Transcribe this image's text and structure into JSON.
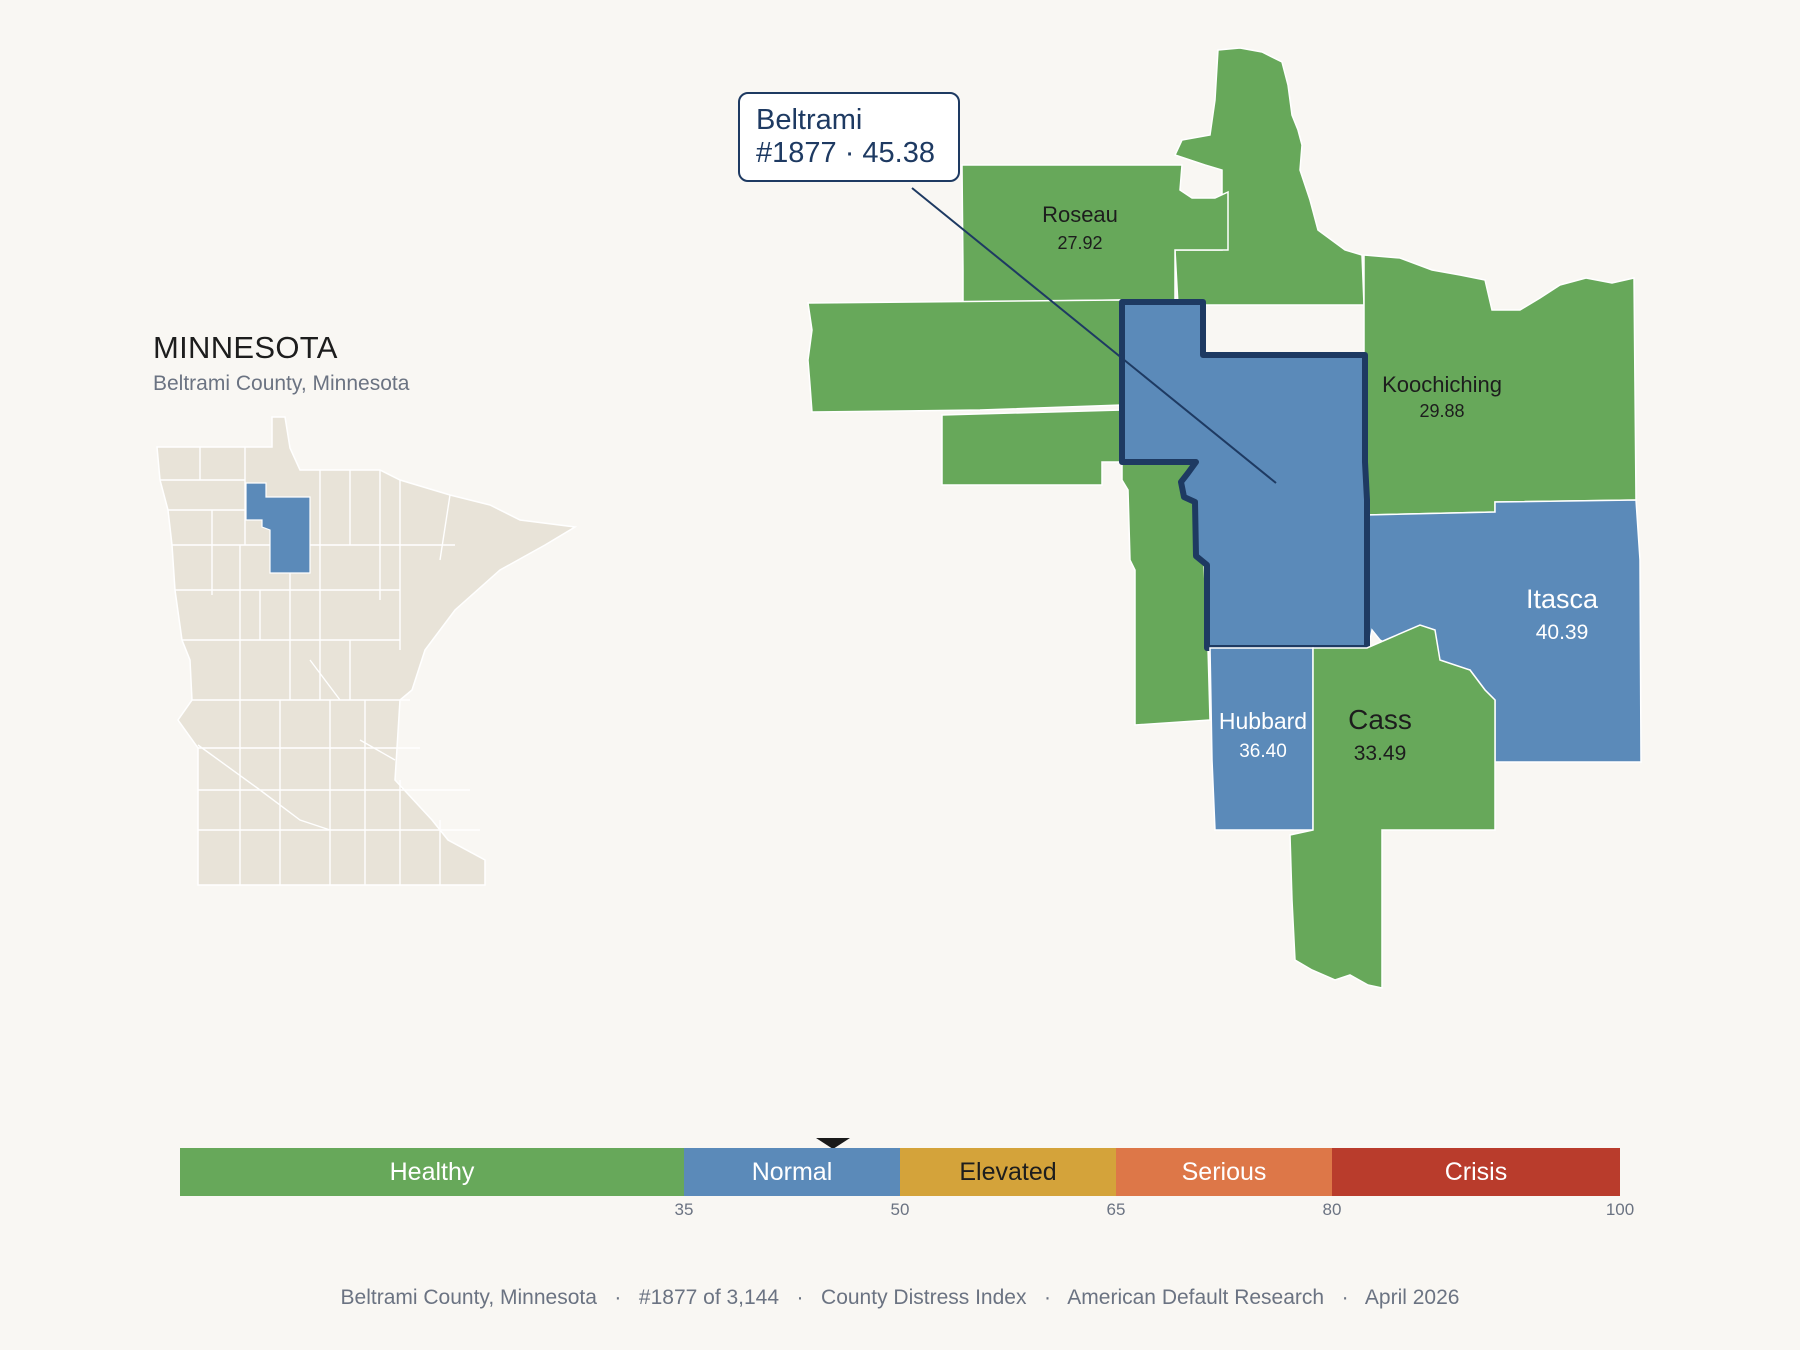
{
  "inset": {
    "title": "MINNESOTA",
    "subtitle": "Beltrami County, Minnesota"
  },
  "callout": {
    "line1": "Beltrami",
    "line2": "#1877 · 45.38"
  },
  "counties": {
    "roseau": {
      "name": "Roseau",
      "value": "27.92"
    },
    "koochiching": {
      "name": "Koochiching",
      "value": "29.88"
    },
    "itasca": {
      "name": "Itasca",
      "value": "40.39"
    },
    "hubbard": {
      "name": "Hubbard",
      "value": "36.40"
    },
    "cass": {
      "name": "Cass",
      "value": "33.49"
    },
    "beltrami": {
      "name": "Beltrami",
      "value": "45.38"
    }
  },
  "colors": {
    "healthy": "#67a85a",
    "normal": "#5b8ab9",
    "elevated": "#d4a33a",
    "serious": "#dd7748",
    "crisis": "#b93c2c",
    "highlight_outline": "#1e3a62",
    "inset_land": "#e8e3d8"
  },
  "scale": {
    "bands": [
      {
        "label": "Healthy",
        "min": 0,
        "max": 35
      },
      {
        "label": "Normal",
        "min": 35,
        "max": 50
      },
      {
        "label": "Elevated",
        "min": 50,
        "max": 65
      },
      {
        "label": "Serious",
        "min": 65,
        "max": 80
      },
      {
        "label": "Crisis",
        "min": 80,
        "max": 100
      }
    ],
    "ticks": [
      "35",
      "50",
      "65",
      "80",
      "100"
    ],
    "marker_value": 45.38
  },
  "footer": "Beltrami County, Minnesota   ·   #1877 of 3,144   ·   County Distress Index   ·   American Default Research   ·   April 2026"
}
